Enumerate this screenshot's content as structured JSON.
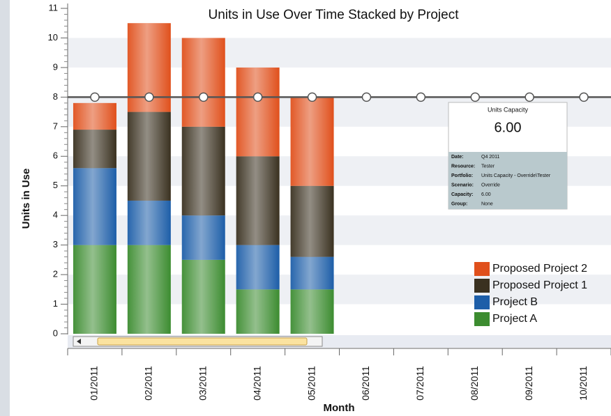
{
  "chart_data": {
    "type": "stacked_bar",
    "title": "Units in Use Over Time Stacked by Project",
    "x_label": "Month",
    "y_label": "Units in Use",
    "categories": [
      "01/2011",
      "02/2011",
      "03/2011",
      "04/2011",
      "05/2011",
      "06/2011",
      "07/2011",
      "08/2011",
      "09/2011",
      "10/2011"
    ],
    "series": [
      {
        "name": "Project A",
        "color": "#3c8c30",
        "values": [
          3,
          3,
          2.5,
          1.5,
          1.5,
          null,
          null,
          null,
          null,
          null
        ]
      },
      {
        "name": "Project B",
        "color": "#1d5ea8",
        "values": [
          2.6,
          1.5,
          1.5,
          1.5,
          1.1,
          null,
          null,
          null,
          null,
          null
        ]
      },
      {
        "name": "Proposed Project 1",
        "color": "#3a3120",
        "values": [
          1.3,
          3,
          3,
          3,
          2.4,
          null,
          null,
          null,
          null,
          null
        ]
      },
      {
        "name": "Proposed Project 2",
        "color": "#e0501c",
        "values": [
          0.9,
          3,
          3,
          3,
          3,
          null,
          null,
          null,
          null,
          null
        ]
      }
    ],
    "capacity": {
      "color": "#555555",
      "values": [
        8,
        8,
        8,
        8,
        8,
        8,
        8,
        8,
        8,
        8
      ]
    },
    "ylim": [
      0,
      11
    ],
    "yticks": [
      0,
      1,
      2,
      3,
      4,
      5,
      6,
      7,
      8,
      9,
      10,
      11
    ],
    "tooltip": {
      "title": "Units Capacity",
      "value": "6.00",
      "fields": [
        {
          "label": "Date:",
          "value": "Q4 2011"
        },
        {
          "label": "Resource:",
          "value": "Tester"
        },
        {
          "label": "Portfolio:",
          "value": "Units Capacity - Override\\Tester"
        },
        {
          "label": "Scenario:",
          "value": "Override"
        },
        {
          "label": "Capacity:",
          "value": "6.00"
        },
        {
          "label": "Group:",
          "value": "None"
        }
      ]
    }
  }
}
